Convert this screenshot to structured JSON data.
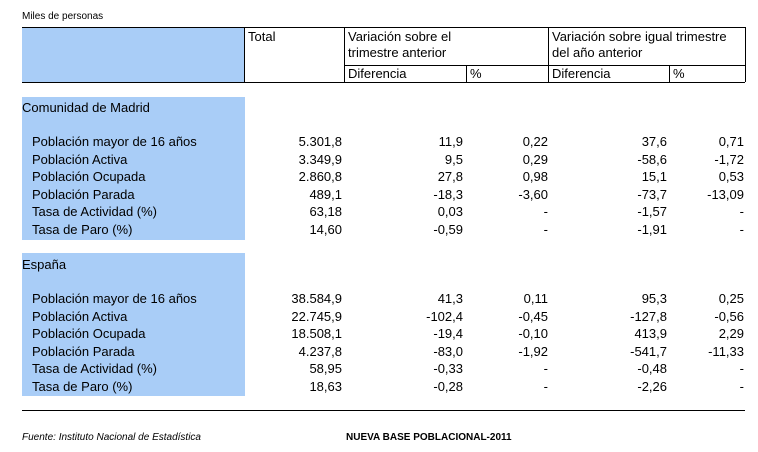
{
  "units_label": "Miles de personas",
  "header": {
    "total": "Total",
    "var_prev_line1": "Variación sobre el",
    "var_prev_line2": "trimestre anterior",
    "var_year_line1": "Variación sobre igual trimestre",
    "var_year_line2": "del año anterior",
    "diferencia": "Diferencia",
    "percent": "%"
  },
  "sections": [
    {
      "name": "Comunidad de Madrid",
      "rows": [
        [
          "Población mayor de 16 años",
          "5.301,8",
          "11,9",
          "0,22",
          "37,6",
          "0,71"
        ],
        [
          "Población Activa",
          "3.349,9",
          "9,5",
          "0,29",
          "-58,6",
          "-1,72"
        ],
        [
          "Población Ocupada",
          "2.860,8",
          "27,8",
          "0,98",
          "15,1",
          "0,53"
        ],
        [
          "Población Parada",
          "489,1",
          "-18,3",
          "-3,60",
          "-73,7",
          "-13,09"
        ],
        [
          "Tasa de Actividad (%)",
          "63,18",
          "0,03",
          "-",
          "-1,57",
          "-"
        ],
        [
          "Tasa de Paro (%)",
          "14,60",
          "-0,59",
          "-",
          "-1,91",
          "-"
        ]
      ]
    },
    {
      "name": "España",
      "rows": [
        [
          "Población mayor de 16 años",
          "38.584,9",
          "41,3",
          "0,11",
          "95,3",
          "0,25"
        ],
        [
          "Población Activa",
          "22.745,9",
          "-102,4",
          "-0,45",
          "-127,8",
          "-0,56"
        ],
        [
          "Población Ocupada",
          "18.508,1",
          "-19,4",
          "-0,10",
          "413,9",
          "2,29"
        ],
        [
          "Población Parada",
          "4.237,8",
          "-83,0",
          "-1,92",
          "-541,7",
          "-11,33"
        ],
        [
          "Tasa de Actividad (%)",
          "58,95",
          "-0,33",
          "-",
          "-0,48",
          "-"
        ],
        [
          "Tasa de Paro (%)",
          "18,63",
          "-0,28",
          "-",
          "-2,26",
          "-"
        ]
      ]
    }
  ],
  "footer": {
    "source": "Fuente: Instituto Nacional de Estadística",
    "note": "NUEVA BASE POBLACIONAL-2011"
  }
}
